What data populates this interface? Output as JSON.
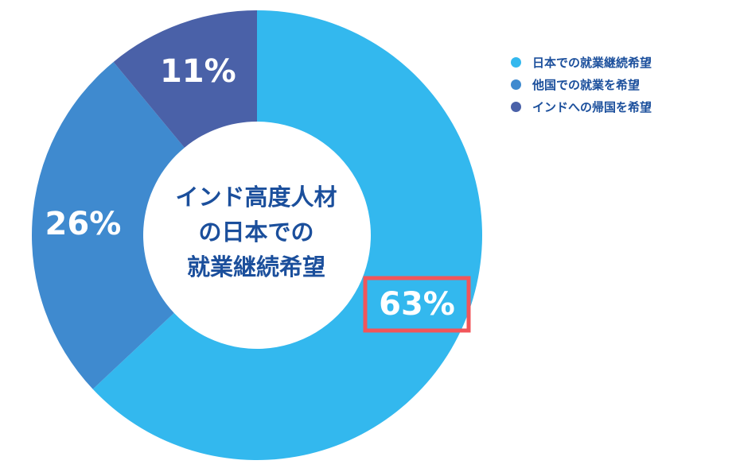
{
  "chart_data": {
    "type": "pie",
    "categories": [
      "日本での就業継続希望",
      "他国での就業を希望",
      "インドへの帰国を希望"
    ],
    "values": [
      63,
      26,
      11
    ],
    "value_labels": [
      "63%",
      "26%",
      "11%"
    ],
    "colors": [
      "#33b8ee",
      "#3f8acf",
      "#4a61a8"
    ],
    "highlight_color": "#f2555a",
    "highlighted_category": "日本での就業継続希望",
    "center_text": [
      "インド高度人材",
      "の日本での",
      "就業継続希望"
    ],
    "legend_position": "top-right",
    "title": "",
    "xlabel": "",
    "ylabel": ""
  },
  "colors": {
    "text_primary": "#1b4f9c",
    "background": "#ffffff"
  }
}
